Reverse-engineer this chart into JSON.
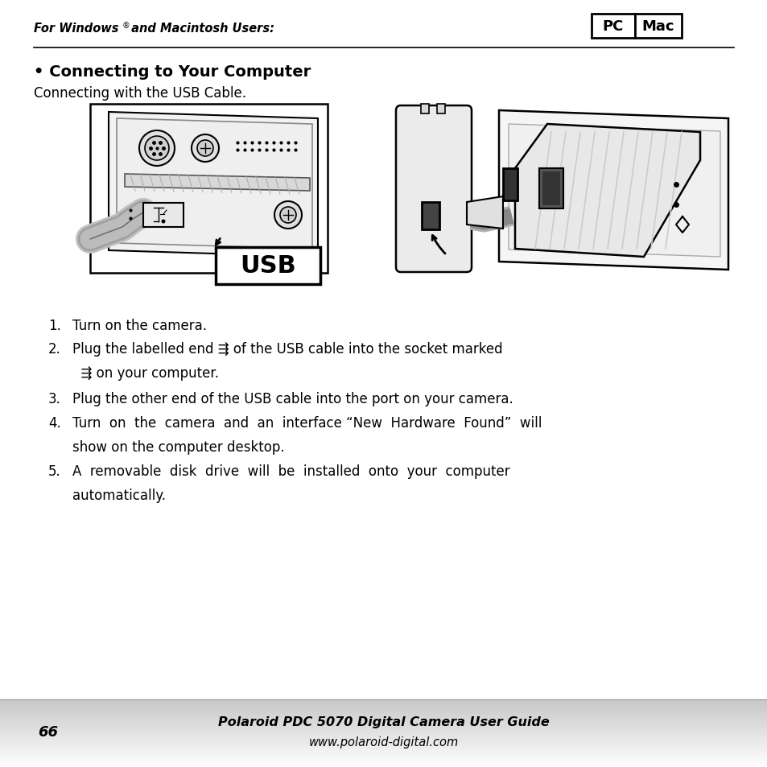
{
  "bg_color": "#ffffff",
  "footer_bg_color_top": "#c8c8c8",
  "footer_bg_color_bottom": "#e8e8e8",
  "header_text": "For Windows",
  "header_sup": "®",
  "header_text2": " and Macintosh Users:",
  "pc_label": "PC",
  "mac_label": "Mac",
  "bullet_title": "• Connecting to Your Computer",
  "subtitle": "Connecting with the USB Cable.",
  "footer_page": "66",
  "footer_title": "Polaroid PDC 5070 Digital Camera User Guide",
  "footer_url": "www.polaroid-digital.com",
  "line1_num": "1.",
  "line1_text": "Turn on the camera.",
  "line2_num": "2.",
  "line2a": "Plug the labelled end",
  "line2b": "of the USB cable into the socket marked",
  "line2c": "on your computer.",
  "line3_num": "3.",
  "line3_text": "Plug the other end of the USB cable into the port on your camera.",
  "line4_num": "4.",
  "line4a": "Turn on the camera and an interface “New Hardware Found” will",
  "line4b": "show on the computer desktop.",
  "line5_num": "5.",
  "line5a": "A  removable  disk  drive  will  be  installed  onto  your  computer",
  "line5b": "automatically."
}
